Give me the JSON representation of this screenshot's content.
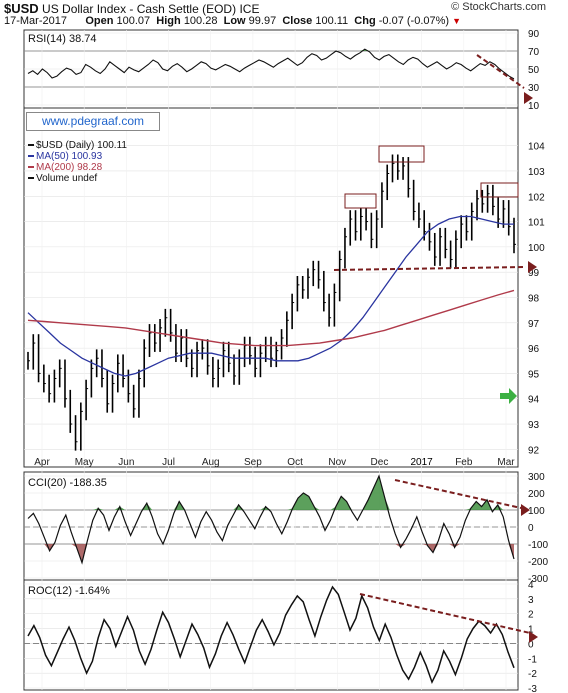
{
  "header": {
    "symbol": "$USD",
    "name": "US Dollar Index - Cash Settle (EOD)",
    "exchange": "ICE",
    "date": "17-Mar-2017",
    "open_label": "Open",
    "open": "100.07",
    "high_label": "High",
    "high": "100.28",
    "low_label": "Low",
    "low": "99.97",
    "close_label": "Close",
    "close": "100.11",
    "chg_label": "Chg",
    "chg": "-0.07 (-0.07%)",
    "chg_arrow": "▼",
    "source": "© StockCharts.com"
  },
  "watermark": "www.pdegraaf.com",
  "colors": {
    "price": "#000000",
    "ma50": "#2a35a0",
    "ma200": "#b03a4a",
    "annotation": "#7a1e1e",
    "fill_up": "#3f8f3f",
    "fill_down": "#a05050",
    "green_arrow": "#3cb043"
  },
  "chart_data": [
    {
      "type": "line",
      "panel": "rsi",
      "legend": "RSI(14) 38.74",
      "yticks": [
        10,
        30,
        50,
        70,
        90
      ],
      "ylim": [
        10,
        90
      ],
      "reference_lines": [
        30,
        70
      ],
      "values": [
        45,
        48,
        44,
        50,
        46,
        40,
        42,
        47,
        51,
        49,
        44,
        46,
        55,
        52,
        48,
        45,
        50,
        58,
        54,
        50,
        46,
        52,
        49,
        47,
        51,
        55,
        60,
        57,
        50,
        48,
        53,
        56,
        52,
        47,
        50,
        54,
        58,
        56,
        51,
        49,
        52,
        55,
        53,
        50,
        47,
        51,
        54,
        57,
        60,
        58,
        55,
        52,
        56,
        59,
        62,
        58,
        54,
        57,
        63,
        67,
        65,
        60,
        62,
        66,
        70,
        68,
        64,
        61,
        65,
        68,
        72,
        69,
        63,
        60,
        64,
        66,
        62,
        58,
        55,
        60,
        63,
        61,
        56,
        52,
        55,
        58,
        54,
        50,
        53,
        57,
        55,
        51,
        48,
        52,
        56,
        54,
        58,
        55,
        50,
        46,
        42,
        39
      ]
    },
    {
      "type": "line",
      "panel": "price",
      "legend": [
        "$USD (Daily) 100.11",
        "MA(50) 100.93",
        "MA(200) 98.28",
        "Volume undef"
      ],
      "x_labels": [
        "Apr",
        "May",
        "Jun",
        "Jul",
        "Aug",
        "Sep",
        "Oct",
        "Nov",
        "Dec",
        "2017",
        "Feb",
        "Mar"
      ],
      "yticks": [
        92,
        93,
        94,
        95,
        96,
        97,
        98,
        99,
        100,
        101,
        102,
        103,
        104
      ],
      "ylim": [
        91.5,
        104.5
      ],
      "series": [
        {
          "name": "$USD (Daily) 100.11",
          "values": [
            95.5,
            96.2,
            95.0,
            94.6,
            94.2,
            94.8,
            95.2,
            94.0,
            93.0,
            92.3,
            93.5,
            94.4,
            95.2,
            95.6,
            94.8,
            93.8,
            94.6,
            95.4,
            94.8,
            94.2,
            93.6,
            94.8,
            96.0,
            96.6,
            96.2,
            96.8,
            97.2,
            96.6,
            95.8,
            96.4,
            95.6,
            95.2,
            95.9,
            96.0,
            95.3,
            94.8,
            95.2,
            95.9,
            95.4,
            94.9,
            95.6,
            96.1,
            95.7,
            95.2,
            95.8,
            96.1,
            95.6,
            95.9,
            96.4,
            97.1,
            97.8,
            98.5,
            98.3,
            98.8,
            99.1,
            98.7,
            97.8,
            97.2,
            98.2,
            99.5,
            100.4,
            101.1,
            100.6,
            101.2,
            101.0,
            100.3,
            101.1,
            102.2,
            102.9,
            103.3,
            103.0,
            103.2,
            102.3,
            101.4,
            101.1,
            100.6,
            100.2,
            99.6,
            100.4,
            99.9,
            99.5,
            100.3,
            100.9,
            100.6,
            101.4,
            101.9,
            101.7,
            102.1,
            101.6,
            101.1,
            101.5,
            100.8,
            100.1
          ]
        },
        {
          "name": "MA(50) 100.93",
          "values": [
            97.4,
            97.0,
            96.6,
            96.2,
            95.9,
            95.6,
            95.4,
            95.2,
            95.0,
            94.9,
            95.0,
            95.2,
            95.4,
            95.6,
            95.7,
            95.8,
            95.8,
            95.8,
            95.7,
            95.6,
            95.6,
            95.6,
            95.6,
            95.5,
            95.5,
            95.5,
            95.6,
            95.8,
            96.0,
            96.3,
            96.7,
            97.2,
            97.8,
            98.4,
            99.0,
            99.6,
            100.1,
            100.6,
            100.9,
            101.1,
            101.2,
            101.2,
            101.1,
            101.0,
            100.9,
            100.9
          ]
        },
        {
          "name": "MA(200) 98.28",
          "values": [
            97.1,
            97.05,
            97.0,
            96.95,
            96.9,
            96.85,
            96.8,
            96.7,
            96.6,
            96.5,
            96.4,
            96.3,
            96.2,
            96.15,
            96.1,
            96.1,
            96.1,
            96.15,
            96.2,
            96.3,
            96.4,
            96.55,
            96.7,
            96.9,
            97.1,
            97.3,
            97.5,
            97.7,
            97.9,
            98.1,
            98.28
          ]
        }
      ]
    },
    {
      "type": "line",
      "panel": "cci",
      "legend": "CCI(20) -188.35",
      "yticks": [
        -300,
        -200,
        -100,
        0,
        100,
        200,
        300
      ],
      "ylim": [
        -300,
        300
      ],
      "reference_lines": [
        -100,
        0,
        100
      ],
      "values": [
        50,
        80,
        20,
        -60,
        -140,
        -90,
        10,
        70,
        -30,
        -120,
        -210,
        -80,
        40,
        110,
        70,
        -20,
        60,
        120,
        30,
        -50,
        20,
        90,
        140,
        60,
        -40,
        -100,
        -20,
        80,
        150,
        100,
        20,
        -60,
        30,
        90,
        40,
        -30,
        -80,
        10,
        70,
        130,
        90,
        40,
        -10,
        60,
        120,
        90,
        20,
        -40,
        30,
        110,
        170,
        200,
        180,
        120,
        60,
        -20,
        40,
        120,
        180,
        150,
        90,
        40,
        100,
        160,
        230,
        300,
        180,
        60,
        -40,
        -120,
        -70,
        -10,
        60,
        -30,
        -110,
        -150,
        -80,
        20,
        -40,
        -120,
        -60,
        40,
        110,
        150,
        120,
        160,
        90,
        130,
        60,
        -80,
        -188
      ]
    },
    {
      "type": "line",
      "panel": "roc",
      "legend": "ROC(12) -1.64%",
      "yticks": [
        -3,
        -2,
        -1,
        0,
        1,
        2,
        3,
        4
      ],
      "ylim": [
        -3,
        4
      ],
      "reference_lines": [
        0
      ],
      "values": [
        0.5,
        1.2,
        0.4,
        -0.8,
        -1.5,
        -0.6,
        0.3,
        1.1,
        0.2,
        -1.0,
        -2.0,
        -1.2,
        0.4,
        1.6,
        1.0,
        -0.2,
        0.8,
        1.8,
        0.9,
        -0.5,
        -1.4,
        -0.4,
        0.9,
        2.1,
        1.4,
        0.3,
        -0.9,
        0.2,
        1.3,
        0.6,
        -0.3,
        -1.6,
        -0.7,
        0.5,
        1.4,
        0.6,
        -0.4,
        -1.3,
        -0.2,
        0.9,
        1.6,
        0.8,
        -0.1,
        0.7,
        1.9,
        2.6,
        3.2,
        2.8,
        1.6,
        0.5,
        1.8,
        2.9,
        3.8,
        3.3,
        2.1,
        0.9,
        1.7,
        3.2,
        2.4,
        1.1,
        0.2,
        1.3,
        0.4,
        -0.8,
        -1.8,
        -2.4,
        -1.6,
        -0.6,
        -1.5,
        -2.6,
        -1.8,
        -0.5,
        -1.2,
        -2.1,
        -1.0,
        0.3,
        1.0,
        1.5,
        1.2,
        0.7,
        1.3,
        0.6,
        -0.6,
        -1.64
      ]
    }
  ]
}
